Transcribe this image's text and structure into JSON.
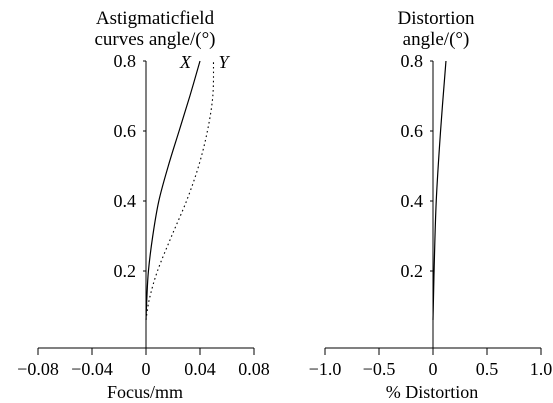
{
  "chart_data": [
    {
      "type": "line",
      "title_lines": [
        "Astigmaticfield",
        "curves angle/(°)"
      ],
      "xlabel": "Focus/mm",
      "ylabel": "",
      "xlim": [
        -0.08,
        0.08
      ],
      "ylim": [
        0.04,
        0.8
      ],
      "xticks": [
        -0.08,
        -0.04,
        0,
        0.04,
        0.08
      ],
      "xtick_labels": [
        "−0.08",
        "−0.04",
        "0",
        "0.04",
        "0.08"
      ],
      "yticks": [
        0.2,
        0.4,
        0.6,
        0.8
      ],
      "ytick_labels": [
        "0.2",
        "0.4",
        "0.6",
        "0.8"
      ],
      "grid": false,
      "series": [
        {
          "name": "X",
          "style": "solid",
          "points": [
            [
              0,
              0.06
            ],
            [
              0.0006,
              0.12
            ],
            [
              0.0018,
              0.2
            ],
            [
              0.005,
              0.3
            ],
            [
              0.0095,
              0.4
            ],
            [
              0.0165,
              0.5
            ],
            [
              0.0245,
              0.6
            ],
            [
              0.0325,
              0.7
            ],
            [
              0.04,
              0.8
            ]
          ]
        },
        {
          "name": "Y",
          "style": "dotted",
          "points": [
            [
              0,
              0.06
            ],
            [
              0.0025,
              0.12
            ],
            [
              0.0085,
              0.2
            ],
            [
              0.019,
              0.3
            ],
            [
              0.03,
              0.4
            ],
            [
              0.039,
              0.5
            ],
            [
              0.0455,
              0.6
            ],
            [
              0.0495,
              0.7
            ],
            [
              0.05,
              0.8
            ]
          ]
        }
      ]
    },
    {
      "type": "line",
      "title_lines": [
        "Distortion",
        "angle/(°)"
      ],
      "xlabel": "% Distortion",
      "ylabel": "",
      "xlim": [
        -1.0,
        1.0
      ],
      "ylim": [
        0.04,
        0.8
      ],
      "xticks": [
        -1.0,
        -0.5,
        0,
        0.5,
        1.0
      ],
      "xtick_labels": [
        "−1.0",
        "−0.5",
        "0",
        "0.5",
        "1.0"
      ],
      "yticks": [
        0.2,
        0.4,
        0.6,
        0.8
      ],
      "ytick_labels": [
        "0.2",
        "0.4",
        "0.6",
        "0.8"
      ],
      "grid": false,
      "series": [
        {
          "name": "",
          "style": "solid",
          "points": [
            [
              0,
              0.06
            ],
            [
              0.01,
              0.2
            ],
            [
              0.03,
              0.4
            ],
            [
              0.07,
              0.6
            ],
            [
              0.12,
              0.8
            ]
          ]
        }
      ]
    }
  ]
}
